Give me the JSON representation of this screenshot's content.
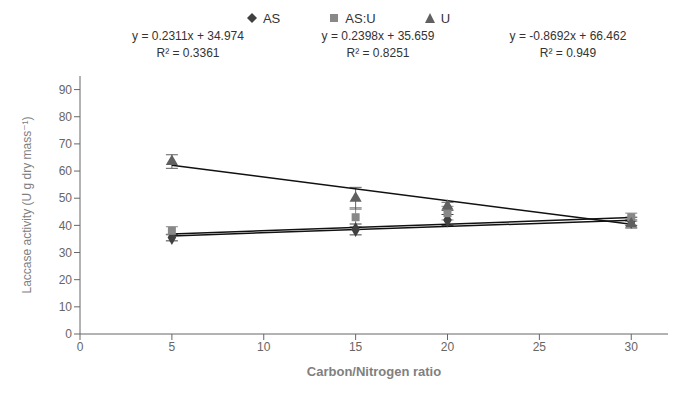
{
  "chart_data": {
    "type": "scatter",
    "xlabel": "Carbon/Nitrogen ratio",
    "ylabel": "Laccase activity (U g dry mass⁻¹)",
    "xlim": [
      0,
      32
    ],
    "ylim": [
      0,
      95
    ],
    "xticks": [
      0,
      5,
      10,
      15,
      20,
      25,
      30
    ],
    "yticks": [
      0,
      10,
      20,
      30,
      40,
      50,
      60,
      70,
      80,
      90
    ],
    "legend": "top",
    "series": [
      {
        "name": "AS",
        "color": "#404040",
        "marker": "diamond",
        "x": [
          5,
          15,
          20,
          30
        ],
        "values": [
          35.5,
          38.5,
          42.0,
          41.5
        ],
        "error": [
          1.2,
          2.0,
          2.0,
          1.5
        ],
        "equation": "y = 0.2311x + 34.974",
        "r2_label": "R² = 0.3361",
        "trend": {
          "type": "line",
          "color": "#111111",
          "x": [
            5,
            30
          ],
          "values": [
            36.1295,
            41.907
          ]
        }
      },
      {
        "name": "AS:U",
        "color": "#888888",
        "marker": "square",
        "x": [
          5,
          15,
          20,
          30
        ],
        "values": [
          38.0,
          43.0,
          44.5,
          43.0
        ],
        "error": [
          1.5,
          3.5,
          2.5,
          1.5
        ],
        "equation": "y = 0.2398x + 35.659",
        "r2_label": "R² = 0.8251",
        "trend": {
          "type": "line",
          "color": "#111111",
          "x": [
            5,
            30
          ],
          "values": [
            36.858,
            42.853
          ]
        }
      },
      {
        "name": "U",
        "color": "#606060",
        "marker": "triangle",
        "x": [
          5,
          15,
          20,
          30
        ],
        "values": [
          63.5,
          50.0,
          47.0,
          40.5
        ],
        "error": [
          2.5,
          4.0,
          1.5,
          1.5
        ],
        "equation": "y = -0.8692x + 66.462",
        "r2_label": "R² = 0.949",
        "trend": {
          "type": "line",
          "color": "#111111",
          "x": [
            5,
            30
          ],
          "values": [
            62.116,
            40.386
          ]
        }
      }
    ]
  }
}
